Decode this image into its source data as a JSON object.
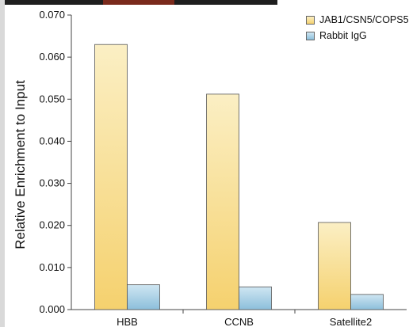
{
  "chart_data": {
    "type": "bar",
    "categories": [
      "HBB",
      "CCNB",
      "Satellite2"
    ],
    "series": [
      {
        "name": "JAB1/CSN5/COPS5",
        "values": [
          0.063,
          0.0512,
          0.0207
        ]
      },
      {
        "name": "Rabbit IgG",
        "values": [
          0.0059,
          0.0054,
          0.0036
        ]
      }
    ],
    "title": "",
    "xlabel": "",
    "ylabel": "Relative Enrichment to Input",
    "ylim": [
      0,
      0.07
    ],
    "yticks": [
      "0.000",
      "0.010",
      "0.020",
      "0.030",
      "0.040",
      "0.050",
      "0.060",
      "0.070"
    ],
    "grid": false,
    "legend_position": "top-right",
    "colors": {
      "series1_top": "#fbefc4",
      "series1_bottom": "#f5d16e",
      "series2_top": "#cfe6f2",
      "series2_bottom": "#8cbfdb"
    }
  }
}
